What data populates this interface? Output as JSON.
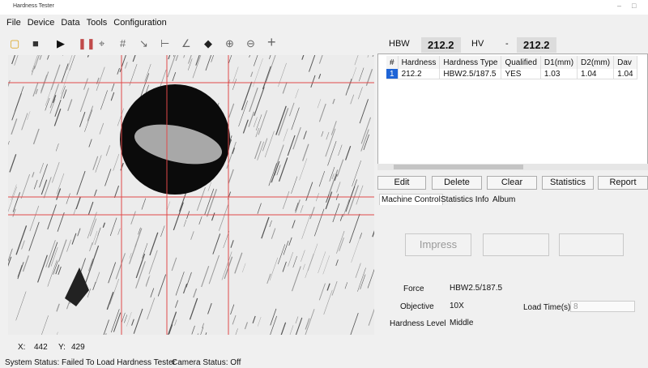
{
  "window": {
    "title": "Hardness Tester"
  },
  "menu": [
    "File",
    "Device",
    "Data",
    "Tools",
    "Configuration"
  ],
  "readout": {
    "hbw_label": "HBW",
    "hbw_value": "212.2",
    "hv_label": "HV",
    "separator": "-",
    "hv_value": "212.2"
  },
  "table": {
    "headers": [
      "#",
      "Hardness",
      "Hardness Type",
      "Qualified",
      "D1(mm)",
      "D2(mm)",
      "Dav"
    ],
    "rows": [
      [
        "1",
        "212.2",
        "HBW2.5/187.5",
        "YES",
        "1.03",
        "1.04",
        "1.04"
      ]
    ]
  },
  "actions": [
    "Edit",
    "Delete",
    "Clear",
    "Statistics",
    "Report"
  ],
  "tabs": [
    "Machine Control",
    "Statistics Info",
    "Album"
  ],
  "machine": {
    "impress": "Impress",
    "force_label": "Force",
    "force": "HBW2.5/187.5",
    "objective_label": "Objective",
    "objective": "10X",
    "load_time_label": "Load Time(s)",
    "load_time": "8",
    "level_label": "Hardness Level",
    "level": "Middle"
  },
  "cursor": {
    "x_label": "X:",
    "x": "442",
    "y_label": "Y:",
    "y": "429"
  },
  "status": {
    "system": "System Status: Failed To Load Hardness Tester",
    "camera": "Camera Status: Off"
  }
}
